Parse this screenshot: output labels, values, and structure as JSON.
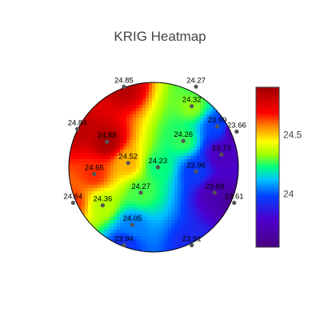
{
  "chart_data": {
    "type": "heatmap",
    "title": "KRIG Heatmap",
    "colorscale": {
      "name": "rainbow",
      "stops": [
        [
          0.0,
          "#4a0080"
        ],
        [
          0.18,
          "#4b00d0"
        ],
        [
          0.32,
          "#0040ff"
        ],
        [
          0.42,
          "#00c0ff"
        ],
        [
          0.5,
          "#00ff80"
        ],
        [
          0.58,
          "#a0ff00"
        ],
        [
          0.66,
          "#ffff00"
        ],
        [
          0.76,
          "#ff8000"
        ],
        [
          0.84,
          "#ff0000"
        ],
        [
          1.0,
          "#a00000"
        ]
      ],
      "cmin": 23.55,
      "cmax": 24.9
    },
    "colorbar_ticks": [
      {
        "value": 24,
        "label": "24"
      },
      {
        "value": 24.5,
        "label": "24.5"
      }
    ],
    "outline_color": "#000000",
    "point_color": "#555555",
    "points": [
      {
        "label": "24.85",
        "value": 24.85,
        "x": -0.35,
        "y": 0.95
      },
      {
        "label": "24.27",
        "value": 24.27,
        "x": 0.5,
        "y": 0.95
      },
      {
        "label": "24.32",
        "value": 24.32,
        "x": 0.45,
        "y": 0.72
      },
      {
        "label": "24.84",
        "value": 24.84,
        "x": -0.9,
        "y": 0.45
      },
      {
        "label": "23.99",
        "value": 23.99,
        "x": 0.75,
        "y": 0.48
      },
      {
        "label": "23.66",
        "value": 23.66,
        "x": 0.98,
        "y": 0.42
      },
      {
        "label": "24.88",
        "value": 24.88,
        "x": -0.55,
        "y": 0.3
      },
      {
        "label": "24.26",
        "value": 24.26,
        "x": 0.35,
        "y": 0.31
      },
      {
        "label": "23.73",
        "value": 23.73,
        "x": 0.8,
        "y": 0.15
      },
      {
        "label": "24.52",
        "value": 24.52,
        "x": -0.3,
        "y": 0.05
      },
      {
        "label": "24.23",
        "value": 24.23,
        "x": 0.05,
        "y": 0.0
      },
      {
        "label": "23.96",
        "value": 23.96,
        "x": 0.5,
        "y": -0.05
      },
      {
        "label": "24.65",
        "value": 24.65,
        "x": -0.7,
        "y": -0.08
      },
      {
        "label": "24.27",
        "value": 24.27,
        "x": -0.15,
        "y": -0.3
      },
      {
        "label": "23.69",
        "value": 23.69,
        "x": 0.72,
        "y": -0.3
      },
      {
        "label": "24.64",
        "value": 24.64,
        "x": -0.95,
        "y": -0.42
      },
      {
        "label": "24.36",
        "value": 24.36,
        "x": -0.6,
        "y": -0.45
      },
      {
        "label": "23.61",
        "value": 23.61,
        "x": 0.95,
        "y": -0.42
      },
      {
        "label": "24.05",
        "value": 24.05,
        "x": -0.25,
        "y": -0.68
      },
      {
        "label": "23.94",
        "value": 23.94,
        "x": -0.35,
        "y": -0.92
      },
      {
        "label": "23.91",
        "value": 23.91,
        "x": 0.45,
        "y": -0.92
      }
    ]
  }
}
